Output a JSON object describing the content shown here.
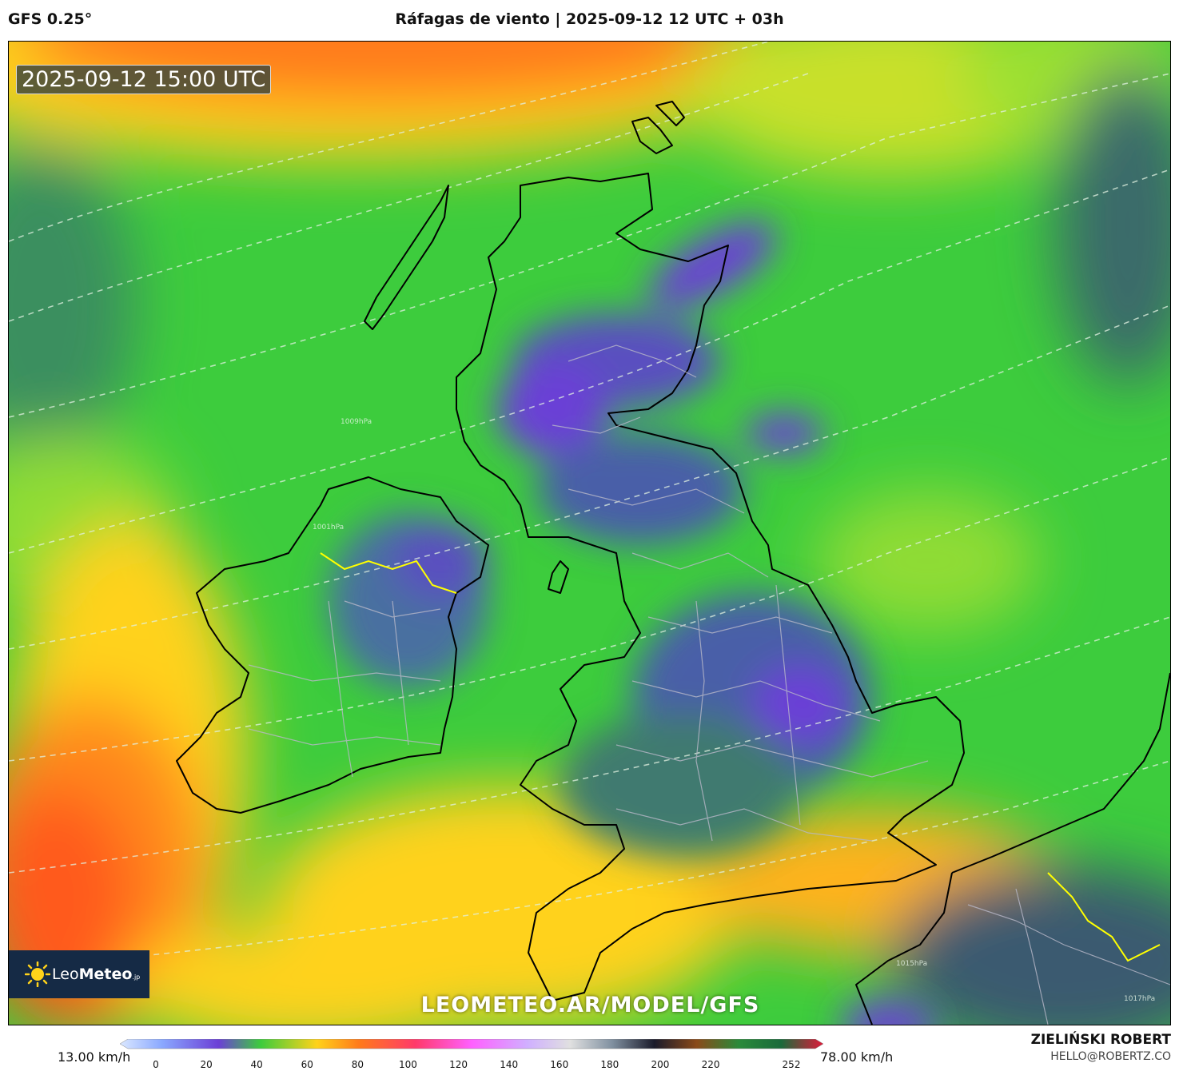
{
  "header": {
    "model": "GFS 0.25°",
    "title": "Ráfagas de viento | 2025-09-12 12 UTC + 03h"
  },
  "map": {
    "timestamp": "2025-09-12 15:00 UTC",
    "watermark": "LEOMETEO.AR/MODEL/GFS",
    "logo": {
      "brand_light": "Leo",
      "brand_bold": "Meteo",
      "suffix": ".jp"
    },
    "isobar_labels": [
      "1001hPa",
      "1009hPa",
      "1015hPa",
      "1017hPa"
    ]
  },
  "colorbar": {
    "min_label": "13.00 km/h",
    "max_label": "78.00 km/h",
    "ticks": [
      {
        "label": "0",
        "value": 0
      },
      {
        "label": "20",
        "value": 20
      },
      {
        "label": "40",
        "value": 40
      },
      {
        "label": "60",
        "value": 60
      },
      {
        "label": "80",
        "value": 80
      },
      {
        "label": "100",
        "value": 100
      },
      {
        "label": "120",
        "value": 120
      },
      {
        "label": "140",
        "value": 140
      },
      {
        "label": "160",
        "value": 160
      },
      {
        "label": "180",
        "value": 180
      },
      {
        "label": "200",
        "value": 200
      },
      {
        "label": "220",
        "value": 220
      },
      {
        "label": "252",
        "value": 252
      }
    ],
    "range": [
      0,
      252
    ]
  },
  "author": {
    "name": "ZIELIŃSKI ROBERT",
    "email": "HELLO@ROBERTZ.CO"
  },
  "colors": {
    "gust_orange": "#ff7a1a",
    "gust_yellow": "#ffd21a",
    "gust_green": "#3dcc3d",
    "gust_teal": "#3a8f5e",
    "gust_purple": "#6b3fd6",
    "logo_bg": "#152a45"
  }
}
